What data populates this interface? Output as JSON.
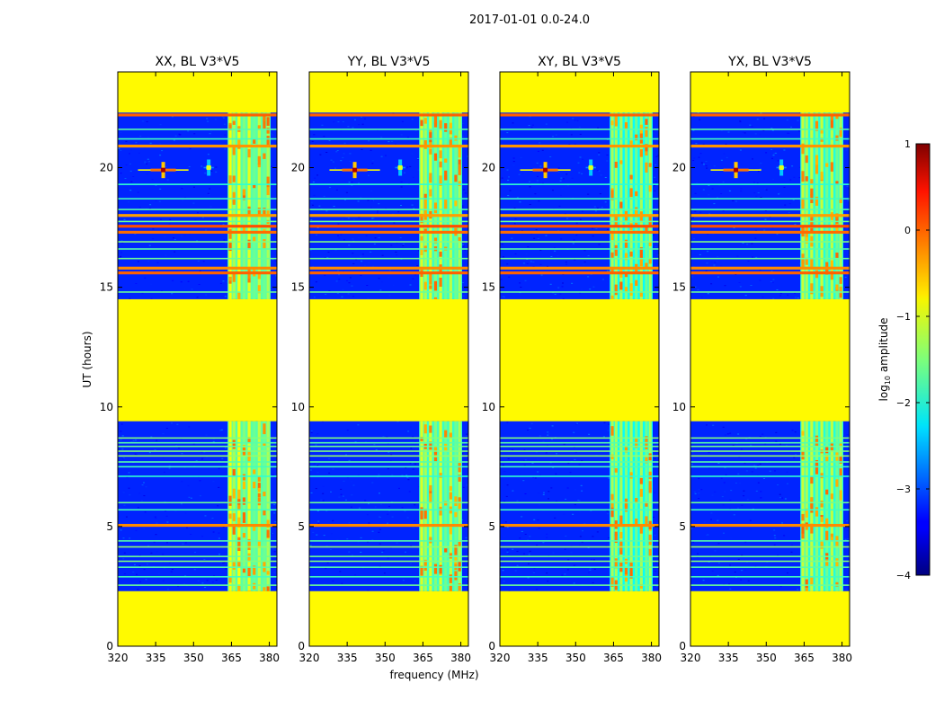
{
  "figure": {
    "suptitle": "2017-01-01 0.0-24.0",
    "ylabel": "UT (hours)",
    "xlabel": "frequency (MHz)",
    "colorbar": {
      "label": "log",
      "label_sub": "10",
      "label_rest": " amplitude",
      "range": [
        -4,
        1
      ],
      "ticks": [
        -4,
        -3,
        -2,
        -1,
        0,
        1
      ]
    }
  },
  "chart_data": {
    "type": "heatmap",
    "x_range": [
      320,
      383
    ],
    "y_range": [
      0,
      24
    ],
    "x_ticks": [
      320,
      335,
      350,
      365,
      380
    ],
    "y_ticks": [
      0,
      5,
      10,
      15,
      20
    ],
    "z_scale": "log10 amplitude",
    "z_range": [
      -4,
      1
    ],
    "background_level": -3.2,
    "flag_level": -0.85,
    "flagged_ut_blocks": [
      [
        0.0,
        2.3
      ],
      [
        9.4,
        14.5
      ],
      [
        22.3,
        24.0
      ]
    ],
    "flagged_freq_band": [
      363.5,
      380.5
    ],
    "panels": [
      {
        "title": "XX, BL V3*V5",
        "band_level": -1.1
      },
      {
        "title": "YY, BL V3*V5",
        "band_level": -1.25
      },
      {
        "title": "XY, BL V3*V5",
        "band_level": -1.5
      },
      {
        "title": "YX, BL V3*V5",
        "band_level": -1.35
      }
    ],
    "rfi_lines_ut": [
      {
        "ut": 2.55,
        "level": -1.6
      },
      {
        "ut": 2.9,
        "level": -1.8
      },
      {
        "ut": 3.3,
        "level": -1.7
      },
      {
        "ut": 3.55,
        "level": -1.5
      },
      {
        "ut": 3.75,
        "level": -1.6
      },
      {
        "ut": 4.15,
        "level": -1.4
      },
      {
        "ut": 4.4,
        "level": -1.7
      },
      {
        "ut": 5.05,
        "level": -0.3
      },
      {
        "ut": 5.7,
        "level": -1.8
      },
      {
        "ut": 6.0,
        "level": -1.6
      },
      {
        "ut": 7.1,
        "level": -1.9
      },
      {
        "ut": 7.5,
        "level": -1.8
      },
      {
        "ut": 7.7,
        "level": -1.7
      },
      {
        "ut": 7.95,
        "level": -1.4
      },
      {
        "ut": 8.15,
        "level": -1.5
      },
      {
        "ut": 8.35,
        "level": -1.6
      },
      {
        "ut": 8.5,
        "level": -1.7
      },
      {
        "ut": 8.7,
        "level": -1.5
      },
      {
        "ut": 14.8,
        "level": -1.6
      },
      {
        "ut": 15.6,
        "level": -0.1
      },
      {
        "ut": 15.8,
        "level": -0.3
      },
      {
        "ut": 16.2,
        "level": -1.6
      },
      {
        "ut": 16.6,
        "level": -1.7
      },
      {
        "ut": 16.9,
        "level": -1.5
      },
      {
        "ut": 17.3,
        "level": -0.15
      },
      {
        "ut": 17.55,
        "level": 0.0
      },
      {
        "ut": 17.75,
        "level": -1.6
      },
      {
        "ut": 18.0,
        "level": -0.4
      },
      {
        "ut": 18.25,
        "level": -1.7
      },
      {
        "ut": 18.7,
        "level": -1.8
      },
      {
        "ut": 19.3,
        "level": -1.9
      },
      {
        "ut": 20.9,
        "level": -0.35
      },
      {
        "ut": 21.2,
        "level": -1.8
      },
      {
        "ut": 21.6,
        "level": -1.7
      },
      {
        "ut": 22.2,
        "level": -0.1
      }
    ],
    "rfi_channels_mhz": [
      {
        "f": 364.5,
        "level": -0.8
      },
      {
        "f": 366.0,
        "level": -1.3
      },
      {
        "f": 368.0,
        "level": -0.9
      },
      {
        "f": 370.0,
        "level": -1.5
      },
      {
        "f": 372.0,
        "level": -1.0
      },
      {
        "f": 374.0,
        "level": -1.6
      },
      {
        "f": 376.0,
        "level": -1.2
      },
      {
        "f": 378.0,
        "level": -1.6
      },
      {
        "f": 379.5,
        "level": -1.3
      }
    ],
    "point_sources": [
      {
        "f": 338.0,
        "ut": 19.9,
        "level": 0.8,
        "width_mhz": 5.0
      },
      {
        "f": 356.0,
        "ut": 20.0,
        "level": -1.0,
        "width_mhz": 1.0
      }
    ]
  }
}
